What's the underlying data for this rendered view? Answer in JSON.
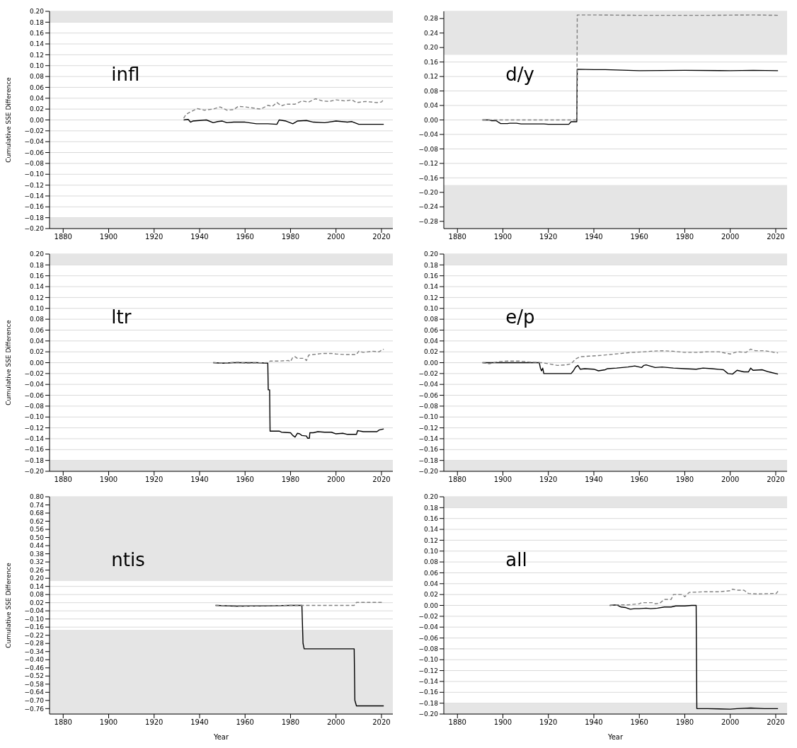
{
  "chart_data": [
    {
      "type": "line",
      "annotations": [
        "infl"
      ],
      "ylabel": "Cumulative SSE Difference",
      "grid": "y",
      "xlim": [
        1874,
        2025
      ],
      "xticks": [
        1880,
        1900,
        1920,
        1940,
        1960,
        1980,
        2000,
        2020
      ],
      "ylim": [
        -0.2,
        0.2
      ],
      "yticks": [
        {
          "value": -0.2,
          "label": "−0.20"
        },
        {
          "value": -0.18,
          "label": "−0.18"
        },
        {
          "value": -0.16,
          "label": "−0.16"
        },
        {
          "value": -0.14,
          "label": "−0.14"
        },
        {
          "value": -0.12,
          "label": "−0.12"
        },
        {
          "value": -0.1,
          "label": "−0.10"
        },
        {
          "value": -0.08,
          "label": "−0.08"
        },
        {
          "value": -0.06,
          "label": "−0.06"
        },
        {
          "value": -0.04,
          "label": "−0.04"
        },
        {
          "value": -0.02,
          "label": "−0.02"
        },
        {
          "value": 0,
          "label": "0.00"
        },
        {
          "value": 0.02,
          "label": "0.02"
        },
        {
          "value": 0.04,
          "label": "0.04"
        },
        {
          "value": 0.06,
          "label": "0.06"
        },
        {
          "value": 0.08,
          "label": "0.08"
        },
        {
          "value": 0.1,
          "label": "0.10"
        },
        {
          "value": 0.12,
          "label": "0.12"
        },
        {
          "value": 0.14,
          "label": "0.14"
        },
        {
          "value": 0.16,
          "label": "0.16"
        },
        {
          "value": 0.18,
          "label": "0.18"
        },
        {
          "value": 0.2,
          "label": "0.20"
        }
      ],
      "bands": [
        {
          "axis": "y",
          "from": 0.18,
          "to": 0.2,
          "color": "#e5e5e5"
        },
        {
          "axis": "y",
          "from": -0.2,
          "to": -0.18,
          "color": "#e5e5e5"
        }
      ],
      "series": [
        {
          "color": "#000000",
          "line_style": "solid",
          "x": [
            1933,
            1935,
            1936,
            1937,
            1940,
            1943,
            1946,
            1948,
            1950,
            1952,
            1955,
            1960,
            1965,
            1970,
            1974,
            1975,
            1978,
            1981,
            1983,
            1987,
            1990,
            1995,
            2000,
            2005,
            2007,
            2010,
            2015,
            2021
          ],
          "values": [
            0.0,
            0.001,
            -0.004,
            -0.002,
            -0.001,
            0.0,
            -0.005,
            -0.003,
            -0.002,
            -0.005,
            -0.004,
            -0.004,
            -0.007,
            -0.007,
            -0.008,
            0.0,
            -0.002,
            -0.007,
            -0.002,
            -0.001,
            -0.004,
            -0.005,
            -0.002,
            -0.004,
            -0.003,
            -0.008,
            -0.008,
            -0.008
          ]
        },
        {
          "color": "#808080",
          "line_style": "dashed",
          "x": [
            1933,
            1934,
            1936,
            1939,
            1942,
            1946,
            1949,
            1952,
            1955,
            1957,
            1960,
            1965,
            1967,
            1970,
            1972,
            1974,
            1976,
            1978,
            1982,
            1985,
            1988,
            1991,
            1994,
            1997,
            2000,
            2004,
            2007,
            2009,
            2013,
            2018,
            2020,
            2021
          ],
          "values": [
            0.003,
            0.01,
            0.015,
            0.021,
            0.018,
            0.02,
            0.024,
            0.018,
            0.019,
            0.025,
            0.024,
            0.021,
            0.02,
            0.027,
            0.025,
            0.032,
            0.026,
            0.029,
            0.029,
            0.035,
            0.033,
            0.039,
            0.035,
            0.034,
            0.037,
            0.035,
            0.037,
            0.032,
            0.034,
            0.032,
            0.033,
            0.038
          ]
        }
      ]
    },
    {
      "type": "line",
      "annotations": [
        "d/y"
      ],
      "grid": "y",
      "xlim": [
        1874,
        2025
      ],
      "xticks": [
        1880,
        1900,
        1920,
        1940,
        1960,
        1980,
        2000,
        2020
      ],
      "ylim": [
        -0.3,
        0.3
      ],
      "yticks": [
        {
          "value": -0.28,
          "label": "−0.28"
        },
        {
          "value": -0.24,
          "label": "−0.24"
        },
        {
          "value": -0.2,
          "label": "−0.20"
        },
        {
          "value": -0.16,
          "label": "−0.16"
        },
        {
          "value": -0.12,
          "label": "−0.12"
        },
        {
          "value": -0.08,
          "label": "−0.08"
        },
        {
          "value": -0.04,
          "label": "−0.04"
        },
        {
          "value": 0,
          "label": "0.00"
        },
        {
          "value": 0.04,
          "label": "0.04"
        },
        {
          "value": 0.08,
          "label": "0.08"
        },
        {
          "value": 0.12,
          "label": "0.12"
        },
        {
          "value": 0.16,
          "label": "0.16"
        },
        {
          "value": 0.2,
          "label": "0.20"
        },
        {
          "value": 0.24,
          "label": "0.24"
        },
        {
          "value": 0.28,
          "label": "0.28"
        }
      ],
      "bands": [
        {
          "axis": "y",
          "from": 0.18,
          "to": 0.3,
          "color": "#e5e5e5"
        },
        {
          "axis": "y",
          "from": -0.3,
          "to": -0.18,
          "color": "#e5e5e5"
        }
      ],
      "series": [
        {
          "color": "#000000",
          "line_style": "solid",
          "x": [
            1891,
            1894,
            1895,
            1897,
            1899,
            1902,
            1903,
            1906,
            1908,
            1918,
            1920,
            1929,
            1930,
            1932.5,
            1932.7,
            1940,
            1945,
            1960,
            1980,
            2000,
            2010,
            2021
          ],
          "values": [
            0.0,
            0.0,
            -0.002,
            -0.002,
            -0.01,
            -0.01,
            -0.009,
            -0.009,
            -0.011,
            -0.011,
            -0.012,
            -0.012,
            -0.005,
            -0.005,
            0.14,
            0.139,
            0.139,
            0.136,
            0.137,
            0.136,
            0.137,
            0.136
          ]
        },
        {
          "color": "#808080",
          "line_style": "dashed",
          "x": [
            1891,
            1897,
            1932.5,
            1932.7,
            1940,
            1960,
            1990,
            2010,
            2021
          ],
          "values": [
            0.0,
            0.0,
            0.0,
            0.29,
            0.29,
            0.289,
            0.289,
            0.29,
            0.289
          ]
        }
      ]
    },
    {
      "type": "line",
      "annotations": [
        "ltr"
      ],
      "ylabel": "Cumulative SSE Difference",
      "grid": "y",
      "xlim": [
        1874,
        2025
      ],
      "xticks": [
        1880,
        1900,
        1920,
        1940,
        1960,
        1980,
        2000,
        2020
      ],
      "ylim": [
        -0.2,
        0.2
      ],
      "yticks": [
        {
          "value": -0.2,
          "label": "−0.20"
        },
        {
          "value": -0.18,
          "label": "−0.18"
        },
        {
          "value": -0.16,
          "label": "−0.16"
        },
        {
          "value": -0.14,
          "label": "−0.14"
        },
        {
          "value": -0.12,
          "label": "−0.12"
        },
        {
          "value": -0.1,
          "label": "−0.10"
        },
        {
          "value": -0.08,
          "label": "−0.08"
        },
        {
          "value": -0.06,
          "label": "−0.06"
        },
        {
          "value": -0.04,
          "label": "−0.04"
        },
        {
          "value": -0.02,
          "label": "−0.02"
        },
        {
          "value": 0,
          "label": "0.00"
        },
        {
          "value": 0.02,
          "label": "0.02"
        },
        {
          "value": 0.04,
          "label": "0.04"
        },
        {
          "value": 0.06,
          "label": "0.06"
        },
        {
          "value": 0.08,
          "label": "0.08"
        },
        {
          "value": 0.1,
          "label": "0.10"
        },
        {
          "value": 0.12,
          "label": "0.12"
        },
        {
          "value": 0.14,
          "label": "0.14"
        },
        {
          "value": 0.16,
          "label": "0.16"
        },
        {
          "value": 0.18,
          "label": "0.18"
        },
        {
          "value": 0.2,
          "label": "0.20"
        }
      ],
      "bands": [
        {
          "axis": "y",
          "from": 0.18,
          "to": 0.2,
          "color": "#e5e5e5"
        },
        {
          "axis": "y",
          "from": -0.2,
          "to": -0.18,
          "color": "#e5e5e5"
        }
      ],
      "series": [
        {
          "color": "#000000",
          "line_style": "solid",
          "x": [
            1946,
            1950,
            1955,
            1960,
            1965,
            1970,
            1970.2,
            1970.8,
            1971,
            1975,
            1976,
            1980,
            1981,
            1982,
            1983,
            1984,
            1985,
            1987,
            1987.5,
            1988.3,
            1988.5,
            1990,
            1992,
            1995,
            1998,
            2000,
            2003,
            2005,
            2009,
            2009.5,
            2012,
            2018,
            2019,
            2021
          ],
          "values": [
            0.0,
            -0.001,
            0.0,
            0.0,
            0.0,
            -0.001,
            -0.05,
            -0.05,
            -0.126,
            -0.126,
            -0.128,
            -0.129,
            -0.134,
            -0.137,
            -0.13,
            -0.131,
            -0.134,
            -0.135,
            -0.139,
            -0.139,
            -0.129,
            -0.129,
            -0.127,
            -0.128,
            -0.128,
            -0.131,
            -0.13,
            -0.132,
            -0.132,
            -0.125,
            -0.127,
            -0.127,
            -0.124,
            -0.122
          ]
        },
        {
          "color": "#808080",
          "line_style": "dashed",
          "x": [
            1946,
            1950,
            1957,
            1960,
            1970,
            1971,
            1975,
            1979,
            1980,
            1981,
            1982,
            1983,
            1986,
            1987,
            1988,
            1990,
            1994,
            1998,
            2000,
            2004,
            2009,
            2010,
            2012,
            2016,
            2019,
            2020,
            2021
          ],
          "values": [
            0.0,
            -0.001,
            0.001,
            -0.001,
            0.0,
            0.003,
            0.003,
            0.004,
            0.002,
            0.01,
            0.011,
            0.008,
            0.008,
            0.004,
            0.014,
            0.015,
            0.017,
            0.017,
            0.016,
            0.015,
            0.015,
            0.021,
            0.019,
            0.021,
            0.02,
            0.023,
            0.025
          ]
        }
      ]
    },
    {
      "type": "line",
      "annotations": [
        "e/p"
      ],
      "grid": "y",
      "xlim": [
        1874,
        2025
      ],
      "xticks": [
        1880,
        1900,
        1920,
        1940,
        1960,
        1980,
        2000,
        2020
      ],
      "ylim": [
        -0.2,
        0.2
      ],
      "yticks": [
        {
          "value": -0.2,
          "label": "−0.20"
        },
        {
          "value": -0.18,
          "label": "−0.18"
        },
        {
          "value": -0.16,
          "label": "−0.16"
        },
        {
          "value": -0.14,
          "label": "−0.14"
        },
        {
          "value": -0.12,
          "label": "−0.12"
        },
        {
          "value": -0.1,
          "label": "−0.10"
        },
        {
          "value": -0.08,
          "label": "−0.08"
        },
        {
          "value": -0.06,
          "label": "−0.06"
        },
        {
          "value": -0.04,
          "label": "−0.04"
        },
        {
          "value": -0.02,
          "label": "−0.02"
        },
        {
          "value": 0,
          "label": "0.00"
        },
        {
          "value": 0.02,
          "label": "0.02"
        },
        {
          "value": 0.04,
          "label": "0.04"
        },
        {
          "value": 0.06,
          "label": "0.06"
        },
        {
          "value": 0.08,
          "label": "0.08"
        },
        {
          "value": 0.1,
          "label": "0.10"
        },
        {
          "value": 0.12,
          "label": "0.12"
        },
        {
          "value": 0.14,
          "label": "0.14"
        },
        {
          "value": 0.16,
          "label": "0.16"
        },
        {
          "value": 0.18,
          "label": "0.18"
        },
        {
          "value": 0.2,
          "label": "0.20"
        }
      ],
      "bands": [
        {
          "axis": "y",
          "from": 0.18,
          "to": 0.2,
          "color": "#e5e5e5"
        },
        {
          "axis": "y",
          "from": -0.2,
          "to": -0.18,
          "color": "#e5e5e5"
        }
      ],
      "series": [
        {
          "color": "#000000",
          "line_style": "solid",
          "x": [
            1891,
            1916,
            1916.5,
            1917,
            1917.5,
            1918,
            1925,
            1930,
            1931,
            1932,
            1933,
            1934,
            1936,
            1940,
            1942,
            1945,
            1946,
            1950,
            1955,
            1958,
            1961,
            1962,
            1963,
            1967,
            1970,
            1975,
            1980,
            1985,
            1988,
            1992,
            1997,
            1999,
            2001,
            2003,
            2006,
            2008,
            2009,
            2010,
            2014,
            2017,
            2021
          ],
          "values": [
            0.0,
            0.0,
            -0.01,
            -0.015,
            -0.01,
            -0.02,
            -0.02,
            -0.02,
            -0.015,
            -0.008,
            -0.005,
            -0.012,
            -0.011,
            -0.012,
            -0.015,
            -0.013,
            -0.011,
            -0.01,
            -0.008,
            -0.006,
            -0.009,
            -0.005,
            -0.004,
            -0.009,
            -0.008,
            -0.01,
            -0.011,
            -0.012,
            -0.01,
            -0.011,
            -0.013,
            -0.02,
            -0.021,
            -0.014,
            -0.017,
            -0.017,
            -0.01,
            -0.014,
            -0.013,
            -0.017,
            -0.021
          ]
        },
        {
          "color": "#808080",
          "line_style": "dashed",
          "x": [
            1891,
            1894,
            1898,
            1902,
            1907,
            1912,
            1917,
            1920,
            1924,
            1928,
            1930,
            1932,
            1934,
            1938,
            1942,
            1947,
            1952,
            1957,
            1962,
            1965,
            1970,
            1975,
            1980,
            1985,
            1990,
            1995,
            2000,
            2003,
            2007,
            2009,
            2011,
            2015,
            2021
          ],
          "values": [
            0.0,
            -0.002,
            0.002,
            0.003,
            0.003,
            0.001,
            0.0,
            -0.002,
            -0.005,
            -0.004,
            -0.002,
            0.007,
            0.011,
            0.012,
            0.013,
            0.015,
            0.017,
            0.019,
            0.02,
            0.021,
            0.022,
            0.021,
            0.019,
            0.019,
            0.02,
            0.02,
            0.016,
            0.02,
            0.019,
            0.025,
            0.022,
            0.022,
            0.018
          ]
        }
      ]
    },
    {
      "type": "line",
      "annotations": [
        "ntis"
      ],
      "ylabel": "Cumulative SSE Difference",
      "xlabel": "Year",
      "grid": "y",
      "xlim": [
        1874,
        2025
      ],
      "xticks": [
        1880,
        1900,
        1920,
        1940,
        1960,
        1980,
        2000,
        2020
      ],
      "ylim": [
        -0.8,
        0.8
      ],
      "yticks": [
        {
          "value": -0.76,
          "label": "−0.76"
        },
        {
          "value": -0.7,
          "label": "−0.70"
        },
        {
          "value": -0.64,
          "label": "−0.64"
        },
        {
          "value": -0.58,
          "label": "−0.58"
        },
        {
          "value": -0.52,
          "label": "−0.52"
        },
        {
          "value": -0.46,
          "label": "−0.46"
        },
        {
          "value": -0.4,
          "label": "−0.40"
        },
        {
          "value": -0.34,
          "label": "−0.34"
        },
        {
          "value": -0.28,
          "label": "−0.28"
        },
        {
          "value": -0.22,
          "label": "−0.22"
        },
        {
          "value": -0.16,
          "label": "−0.16"
        },
        {
          "value": -0.1,
          "label": "−0.10"
        },
        {
          "value": -0.04,
          "label": "−0.04"
        },
        {
          "value": 0.02,
          "label": "0.02"
        },
        {
          "value": 0.08,
          "label": "0.08"
        },
        {
          "value": 0.14,
          "label": "0.14"
        },
        {
          "value": 0.2,
          "label": "0.20"
        },
        {
          "value": 0.26,
          "label": "0.26"
        },
        {
          "value": 0.32,
          "label": "0.32"
        },
        {
          "value": 0.38,
          "label": "0.38"
        },
        {
          "value": 0.44,
          "label": "0.44"
        },
        {
          "value": 0.5,
          "label": "0.50"
        },
        {
          "value": 0.56,
          "label": "0.56"
        },
        {
          "value": 0.62,
          "label": "0.62"
        },
        {
          "value": 0.68,
          "label": "0.68"
        },
        {
          "value": 0.74,
          "label": "0.74"
        },
        {
          "value": 0.8,
          "label": "0.80"
        }
      ],
      "bands": [
        {
          "axis": "y",
          "from": 0.18,
          "to": 0.8,
          "color": "#e5e5e5"
        },
        {
          "axis": "y",
          "from": -0.8,
          "to": -0.18,
          "color": "#e5e5e5"
        }
      ],
      "series": [
        {
          "color": "#000000",
          "line_style": "solid",
          "x": [
            1947,
            1956,
            1970,
            1980,
            1985,
            1985.5,
            1986,
            2008,
            2008.3,
            2009,
            2021
          ],
          "values": [
            0.0,
            -0.005,
            -0.003,
            0.0,
            0.0,
            -0.28,
            -0.32,
            -0.32,
            -0.7,
            -0.74,
            -0.74
          ]
        },
        {
          "color": "#808080",
          "line_style": "dashed",
          "x": [
            1947,
            1960,
            1980,
            2008,
            2009,
            2021
          ],
          "values": [
            0.0,
            -0.003,
            0.0,
            0.0,
            0.022,
            0.022
          ]
        }
      ]
    },
    {
      "type": "line",
      "annotations": [
        "all"
      ],
      "xlabel": "Year",
      "grid": "y",
      "xlim": [
        1874,
        2025
      ],
      "xticks": [
        1880,
        1900,
        1920,
        1940,
        1960,
        1980,
        2000,
        2020
      ],
      "ylim": [
        -0.2,
        0.2
      ],
      "yticks": [
        {
          "value": -0.2,
          "label": "−0.20"
        },
        {
          "value": -0.18,
          "label": "−0.18"
        },
        {
          "value": -0.16,
          "label": "−0.16"
        },
        {
          "value": -0.14,
          "label": "−0.14"
        },
        {
          "value": -0.12,
          "label": "−0.12"
        },
        {
          "value": -0.1,
          "label": "−0.10"
        },
        {
          "value": -0.08,
          "label": "−0.08"
        },
        {
          "value": -0.06,
          "label": "−0.06"
        },
        {
          "value": -0.04,
          "label": "−0.04"
        },
        {
          "value": -0.02,
          "label": "−0.02"
        },
        {
          "value": 0,
          "label": "0.00"
        },
        {
          "value": 0.02,
          "label": "0.02"
        },
        {
          "value": 0.04,
          "label": "0.04"
        },
        {
          "value": 0.06,
          "label": "0.06"
        },
        {
          "value": 0.08,
          "label": "0.08"
        },
        {
          "value": 0.1,
          "label": "0.10"
        },
        {
          "value": 0.12,
          "label": "0.12"
        },
        {
          "value": 0.14,
          "label": "0.14"
        },
        {
          "value": 0.16,
          "label": "0.16"
        },
        {
          "value": 0.18,
          "label": "0.18"
        },
        {
          "value": 0.2,
          "label": "0.20"
        }
      ],
      "bands": [
        {
          "axis": "y",
          "from": 0.18,
          "to": 0.2,
          "color": "#e5e5e5"
        },
        {
          "axis": "y",
          "from": -0.2,
          "to": -0.18,
          "color": "#e5e5e5"
        }
      ],
      "series": [
        {
          "color": "#000000",
          "line_style": "solid",
          "x": [
            1947,
            1950,
            1952,
            1954,
            1956,
            1958,
            1960,
            1963,
            1965,
            1968,
            1971,
            1974,
            1976,
            1980,
            1983,
            1985,
            1985.3,
            1990,
            2000,
            2003,
            2009,
            2015,
            2021
          ],
          "values": [
            0.0,
            0.001,
            -0.003,
            -0.004,
            -0.007,
            -0.006,
            -0.006,
            -0.005,
            -0.006,
            -0.005,
            -0.003,
            -0.003,
            -0.001,
            -0.001,
            0.0,
            0.0,
            -0.19,
            -0.19,
            -0.191,
            -0.19,
            -0.189,
            -0.19,
            -0.19
          ]
        },
        {
          "color": "#808080",
          "line_style": "dashed",
          "x": [
            1947,
            1950,
            1955,
            1960,
            1961,
            1966,
            1967,
            1969,
            1971,
            1974,
            1975,
            1979,
            1980,
            1982,
            1988,
            1995,
            2000,
            2001,
            2003,
            2006,
            2008,
            2012,
            2019,
            2020,
            2021
          ],
          "values": [
            0.0,
            0.001,
            0.001,
            0.003,
            0.005,
            0.005,
            0.003,
            0.004,
            0.011,
            0.011,
            0.02,
            0.02,
            0.016,
            0.024,
            0.025,
            0.025,
            0.027,
            0.03,
            0.028,
            0.028,
            0.022,
            0.021,
            0.022,
            0.021,
            0.026
          ]
        }
      ]
    }
  ]
}
